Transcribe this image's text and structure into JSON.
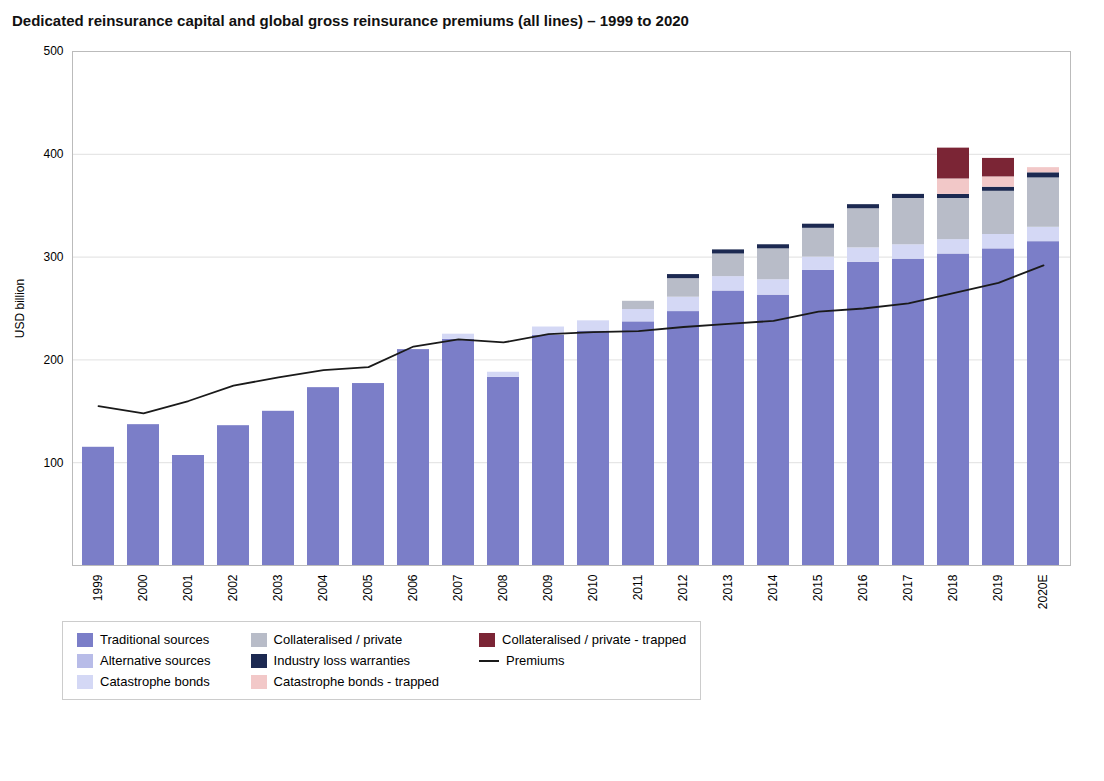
{
  "chart_data": {
    "type": "bar",
    "title": "Dedicated reinsurance capital and global gross reinsurance premiums (all lines) – 1999 to 2020",
    "y_label": "USD billion",
    "stacked": true,
    "grid": true,
    "legend": "bottom",
    "categories": [
      "1999",
      "2000",
      "2001",
      "2002",
      "2003",
      "2004",
      "2005",
      "2006",
      "2007",
      "2008",
      "2009",
      "2010",
      "2011",
      "2012",
      "2013",
      "2014",
      "2015",
      "2016",
      "2017",
      "2018",
      "2019",
      "2020E"
    ],
    "ylim": [
      0,
      500
    ],
    "yticks": [
      {
        "value": 0,
        "label": ""
      },
      100,
      200,
      300,
      400,
      500
    ],
    "series": [
      {
        "name": "Traditional sources",
        "color": "#7B7EC8",
        "type": "bar",
        "values": [
          115,
          137,
          107,
          136,
          150,
          173,
          177,
          210,
          220,
          183,
          224,
          228,
          237,
          247,
          267,
          263,
          287,
          295,
          298,
          303,
          308,
          315
        ]
      },
      {
        "name": "Alternative sources",
        "color": "#b8bce8",
        "type": "bar",
        "values": [
          null,
          null,
          null,
          null,
          null,
          null,
          null,
          null,
          null,
          null,
          null,
          null,
          null,
          null,
          null,
          null,
          null,
          null,
          null,
          null,
          null,
          null
        ]
      },
      {
        "name": "Catastrophe bonds",
        "color": "#D4D8F5",
        "type": "bar",
        "values": [
          0,
          0,
          0,
          0,
          0,
          0,
          0,
          0,
          5,
          5,
          8,
          10,
          12,
          14,
          14,
          15,
          13,
          14,
          14,
          14,
          14,
          14
        ]
      },
      {
        "name": "Collateralised / private",
        "color": "#B8BCC8",
        "type": "bar",
        "values": [
          0,
          0,
          0,
          0,
          0,
          0,
          0,
          0,
          0,
          0,
          0,
          0,
          8,
          18,
          22,
          30,
          28,
          38,
          45,
          40,
          42,
          48
        ]
      },
      {
        "name": "Industry loss warranties",
        "color": "#1C2951",
        "type": "bar",
        "values": [
          0,
          0,
          0,
          0,
          0,
          0,
          0,
          0,
          0,
          0,
          0,
          0,
          0,
          4,
          4,
          4,
          4,
          4,
          4,
          4,
          4,
          5
        ]
      },
      {
        "name": "Catastrophe bonds - trapped",
        "color": "#F2C8C8",
        "type": "bar",
        "values": [
          0,
          0,
          0,
          0,
          0,
          0,
          0,
          0,
          0,
          0,
          0,
          0,
          0,
          0,
          0,
          0,
          0,
          0,
          0,
          15,
          10,
          5
        ]
      },
      {
        "name": "Collateralised / private - trapped",
        "color": "#7B2535",
        "type": "bar",
        "values": [
          0,
          0,
          0,
          0,
          0,
          0,
          0,
          0,
          0,
          0,
          0,
          0,
          0,
          0,
          0,
          0,
          0,
          0,
          0,
          30,
          18,
          0
        ]
      },
      {
        "name": "Premiums",
        "color": "#1a1a1a",
        "type": "line",
        "values": [
          155,
          148,
          160,
          175,
          183,
          190,
          193,
          213,
          220,
          217,
          225,
          227,
          228,
          232,
          235,
          238,
          247,
          250,
          255,
          265,
          275,
          292
        ]
      }
    ]
  }
}
